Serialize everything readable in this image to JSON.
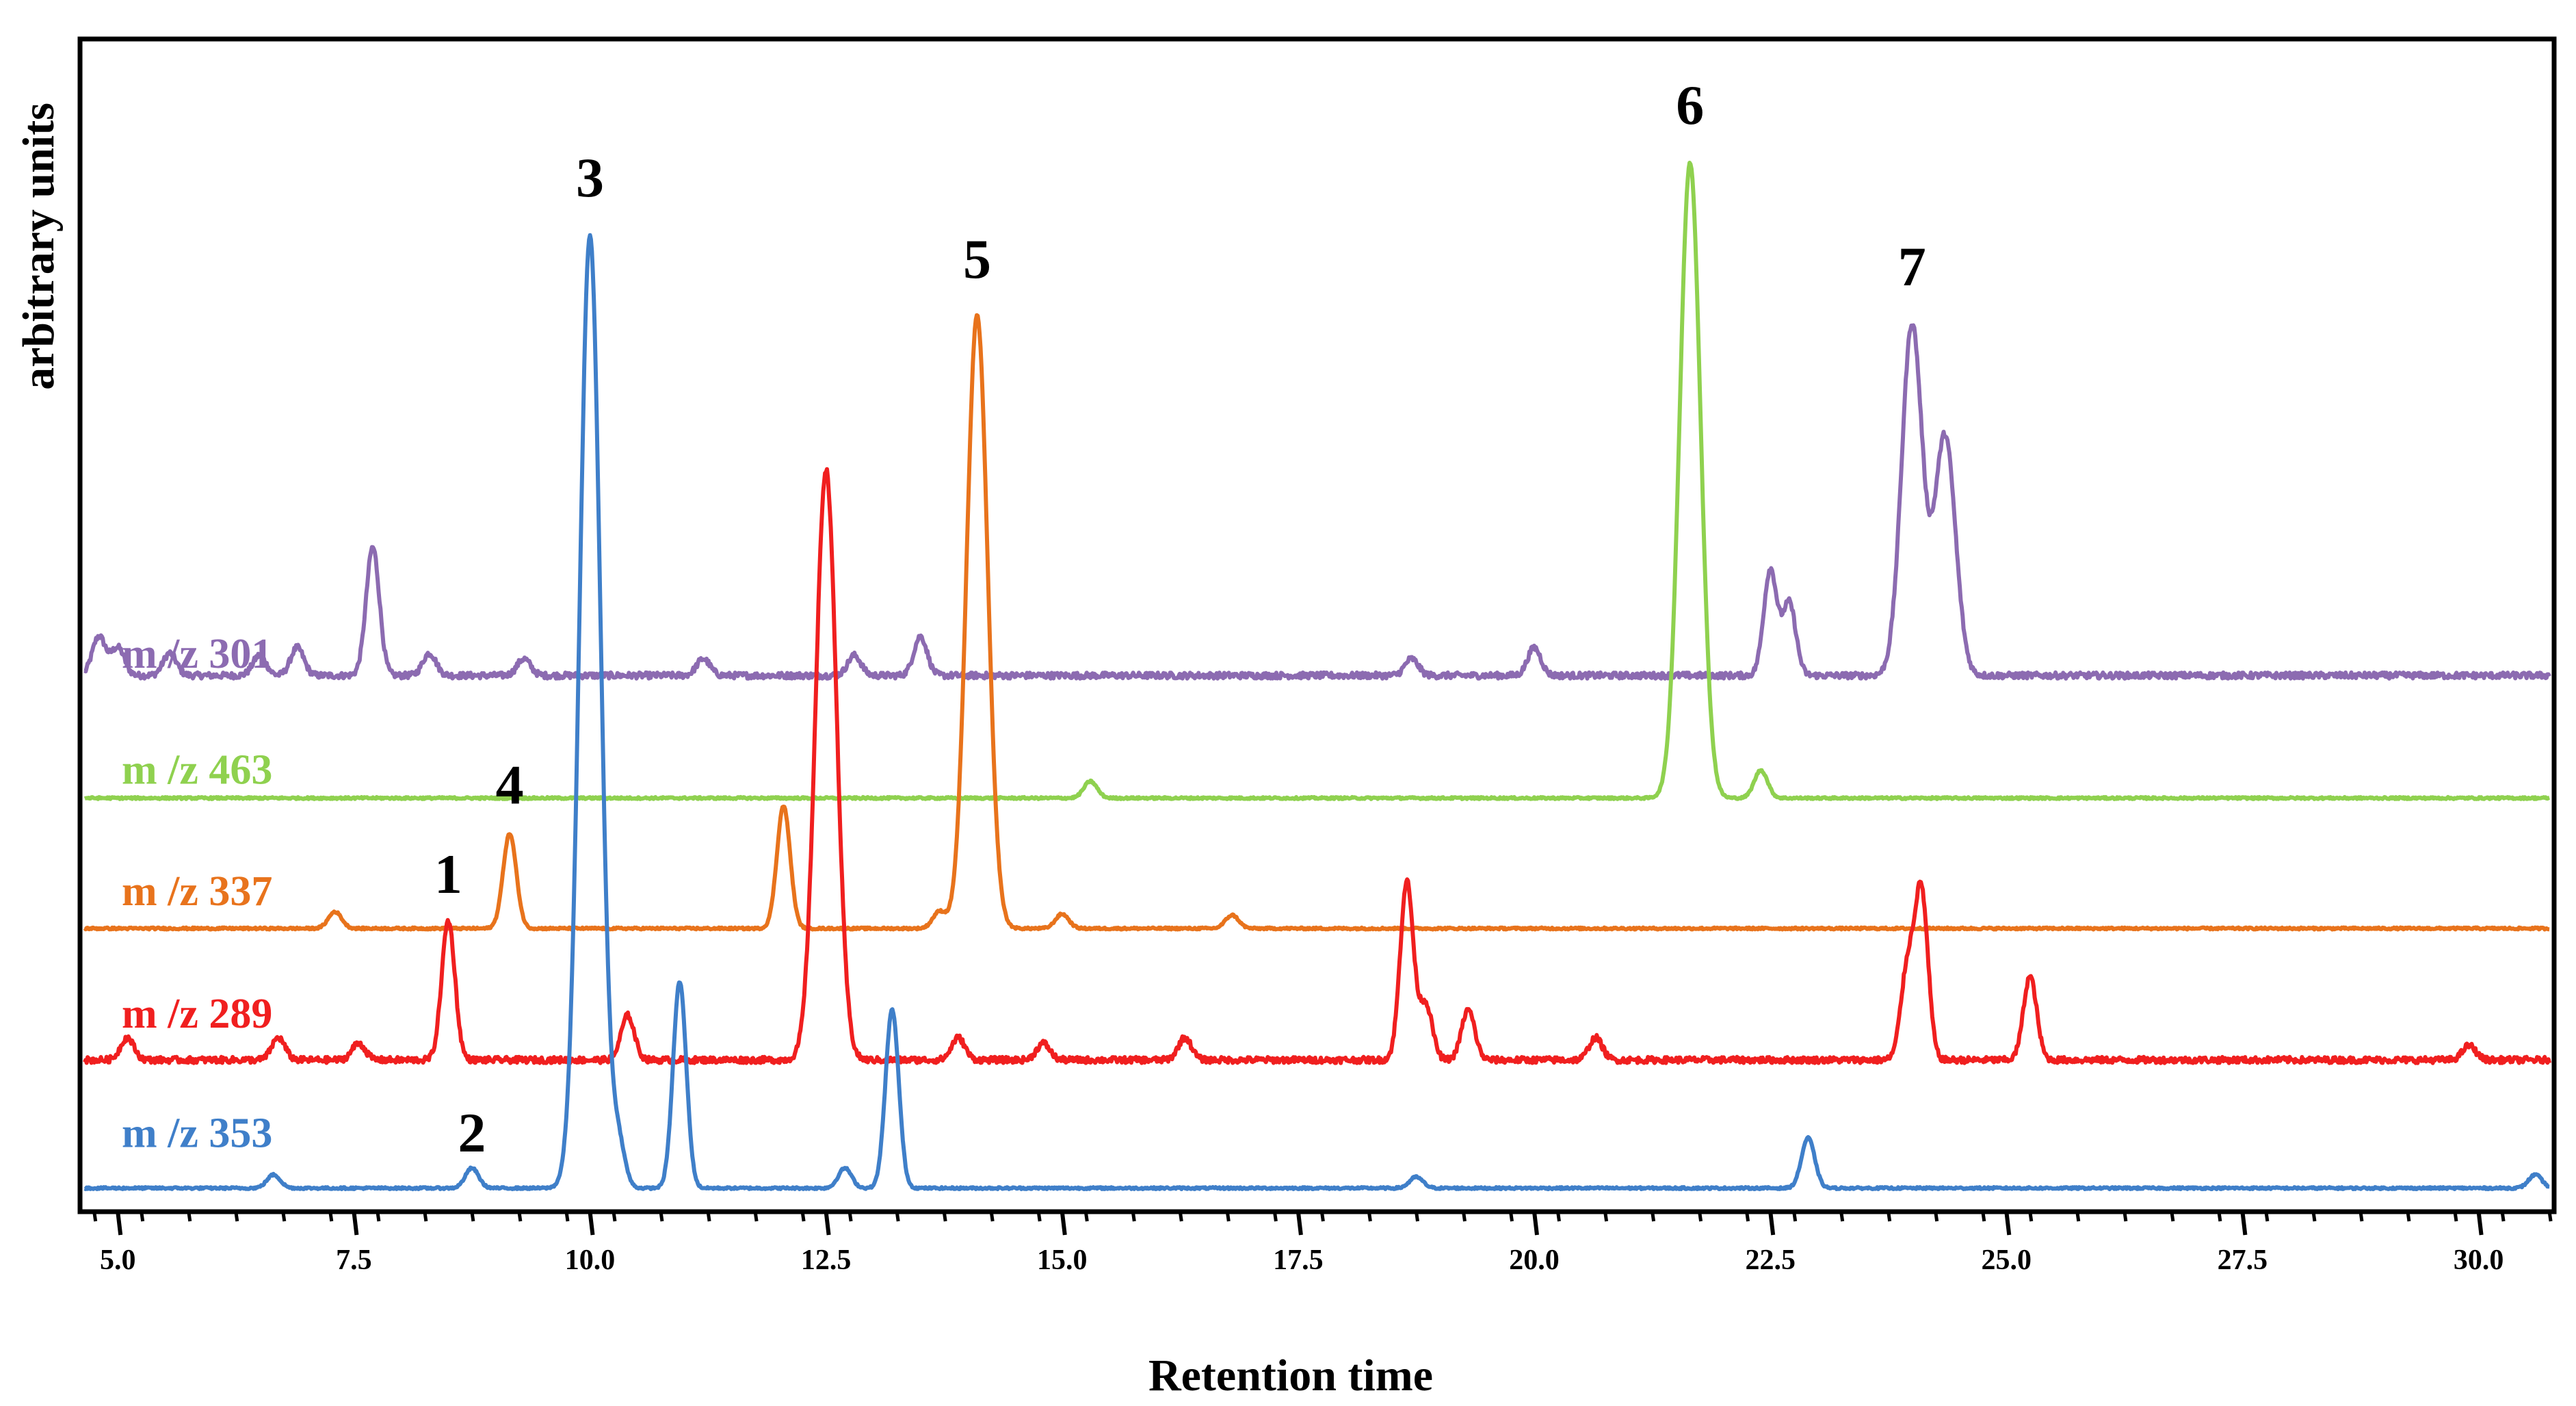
{
  "chart_data": {
    "type": "line",
    "title": "",
    "xlabel": "Retention time",
    "ylabel": "arbitrary units",
    "xlim": [
      4.6,
      30.8
    ],
    "ylim": [
      -1,
      103
    ],
    "x_ticks": [
      "5.0",
      "7.5",
      "10.0",
      "12.5",
      "15.0",
      "17.5",
      "20.0",
      "22.5",
      "25.0",
      "27.5",
      "30.0"
    ],
    "grid": false,
    "legend": "inline-left",
    "colors": {
      "m/z 301": "#8c6bb1",
      "m/z 463": "#8fd14f",
      "m/z 337": "#e8731c",
      "m/z 289": "#f01f1f",
      "m/z 353": "#3f7fc9"
    },
    "series": [
      {
        "name": "m /z 301",
        "color": "#8c6bb1",
        "baseline": 46.5,
        "peaks": [
          {
            "x": 4.8,
            "h": 3.5
          },
          {
            "x": 5.0,
            "h": 2.5
          },
          {
            "x": 5.55,
            "h": 2.0
          },
          {
            "x": 6.5,
            "h": 1.8
          },
          {
            "x": 6.9,
            "h": 2.5
          },
          {
            "x": 7.7,
            "h": 11.5
          },
          {
            "x": 8.3,
            "h": 2.0
          },
          {
            "x": 9.3,
            "h": 1.5
          },
          {
            "x": 11.2,
            "h": 1.5
          },
          {
            "x": 12.8,
            "h": 1.8
          },
          {
            "x": 13.5,
            "h": 3.5
          },
          {
            "x": 18.7,
            "h": 1.5
          },
          {
            "x": 20.0,
            "h": 2.5
          },
          {
            "x": 22.5,
            "h": 9.5
          },
          {
            "x": 22.7,
            "h": 6.5
          },
          {
            "x": 24.0,
            "h": 31.5
          },
          {
            "x": 24.35,
            "h": 21.5
          }
        ]
      },
      {
        "name": "m /z 463",
        "color": "#8fd14f",
        "baseline": 35.5,
        "peaks": [
          {
            "x": 15.3,
            "h": 1.5
          },
          {
            "x": 21.65,
            "h": 57.0
          },
          {
            "x": 22.4,
            "h": 2.5
          }
        ]
      },
      {
        "name": "m /z 337",
        "color": "#e8731c",
        "baseline": 23.8,
        "peaks": [
          {
            "x": 7.3,
            "h": 1.5
          },
          {
            "x": 9.15,
            "h": 8.5
          },
          {
            "x": 12.05,
            "h": 11.0
          },
          {
            "x": 13.7,
            "h": 1.5
          },
          {
            "x": 14.1,
            "h": 55.0
          },
          {
            "x": 15.0,
            "h": 1.3
          },
          {
            "x": 16.8,
            "h": 1.2
          }
        ]
      },
      {
        "name": "m /z 289",
        "color": "#f01f1f",
        "baseline": 12.0,
        "peaks": [
          {
            "x": 5.1,
            "h": 2.0
          },
          {
            "x": 6.7,
            "h": 2.0
          },
          {
            "x": 7.55,
            "h": 1.5
          },
          {
            "x": 8.5,
            "h": 12.5
          },
          {
            "x": 10.4,
            "h": 4.0
          },
          {
            "x": 12.5,
            "h": 53.0
          },
          {
            "x": 13.9,
            "h": 2.0
          },
          {
            "x": 14.8,
            "h": 1.5
          },
          {
            "x": 16.3,
            "h": 2.0
          },
          {
            "x": 18.65,
            "h": 16.0
          },
          {
            "x": 18.85,
            "h": 5.0
          },
          {
            "x": 19.3,
            "h": 4.5
          },
          {
            "x": 20.65,
            "h": 2.0
          },
          {
            "x": 23.95,
            "h": 8.0
          },
          {
            "x": 24.1,
            "h": 15.0
          },
          {
            "x": 25.25,
            "h": 7.5
          },
          {
            "x": 29.9,
            "h": 1.3
          }
        ]
      },
      {
        "name": "m /z 353",
        "color": "#3f7fc9",
        "baseline": 0.5,
        "peaks": [
          {
            "x": 6.65,
            "h": 1.2
          },
          {
            "x": 8.75,
            "h": 1.8
          },
          {
            "x": 10.0,
            "h": 85.5
          },
          {
            "x": 10.3,
            "h": 4.0
          },
          {
            "x": 10.95,
            "h": 18.5
          },
          {
            "x": 12.7,
            "h": 1.8
          },
          {
            "x": 13.2,
            "h": 16.0
          },
          {
            "x": 18.75,
            "h": 1.0
          },
          {
            "x": 22.9,
            "h": 4.5
          },
          {
            "x": 30.6,
            "h": 1.2
          }
        ]
      }
    ],
    "annotations": [
      {
        "text": "1",
        "x": 8.5,
        "y": 27.0
      },
      {
        "text": "2",
        "x": 8.75,
        "y": 3.8
      },
      {
        "text": "3",
        "x": 10.0,
        "y": 89.5
      },
      {
        "text": "4",
        "x": 9.15,
        "y": 35.0
      },
      {
        "text": "5",
        "x": 14.1,
        "y": 82.2
      },
      {
        "text": "6",
        "x": 21.65,
        "y": 96.0
      },
      {
        "text": "7",
        "x": 24.0,
        "y": 81.5
      }
    ]
  }
}
